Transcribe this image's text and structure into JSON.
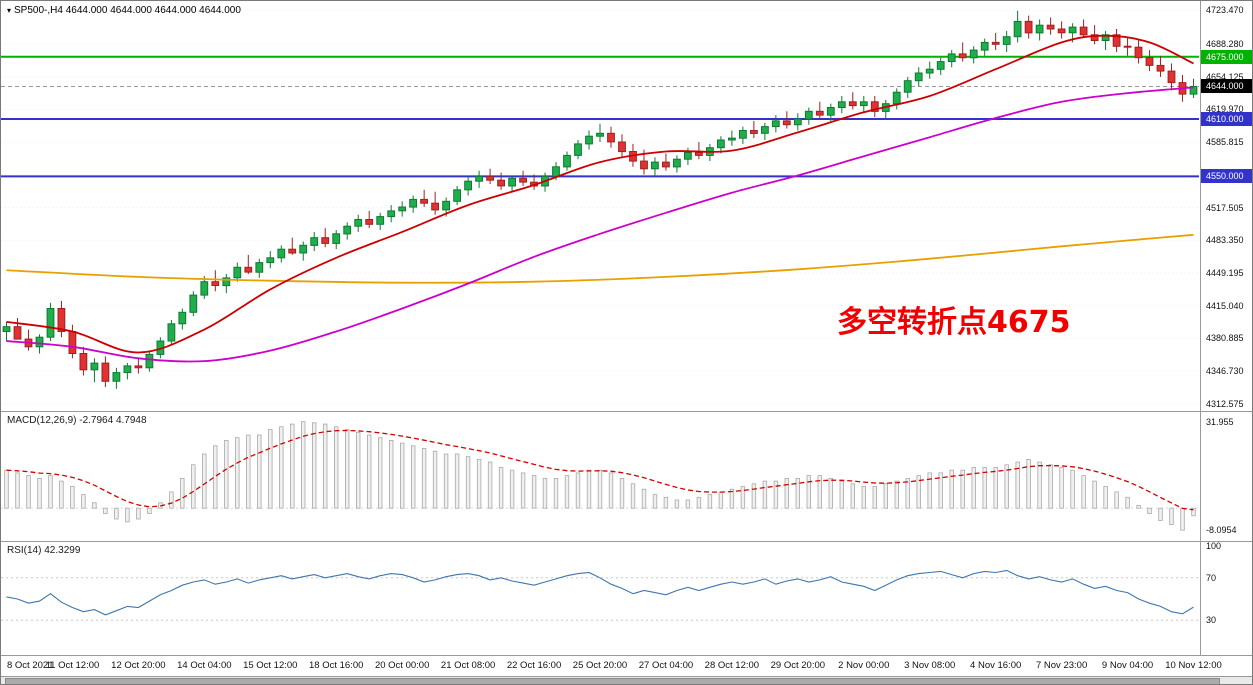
{
  "header": {
    "dropdown_icon": "▾",
    "title": "SP500-,H4 4644.000 4644.000 4644.000 4644.000"
  },
  "annotation": {
    "text": "多空转折点4675",
    "color": "#F20000"
  },
  "colors": {
    "bull_fill": "#1FAE4B",
    "bull_border": "#0E7A31",
    "bear_fill": "#E03232",
    "bear_border": "#A02020",
    "ma_fast": "#CC0000",
    "ma_mid": "#CC00CC",
    "ma_slow": "#E8A000",
    "hline_green": "#00B200",
    "hline_blue": "#3333CC",
    "current_price_line": "#9a9a9a",
    "current_badge": "#000000",
    "macd_bar_fill": "#F0F0F0",
    "macd_bar_border": "#A8A8A8",
    "macd_signal": "#D40000",
    "rsi_line": "#3F76AD",
    "grid": "#ECECEC",
    "level_dotted": "#C8C8C8"
  },
  "chart_data": {
    "type": "candlestick",
    "symbol": "SP500-",
    "timeframe": "H4",
    "x_labels": [
      "8 Oct 2021",
      "11 Oct 12:00",
      "12 Oct 20:00",
      "14 Oct 04:00",
      "15 Oct 12:00",
      "18 Oct 16:00",
      "20 Oct 00:00",
      "21 Oct 08:00",
      "22 Oct 16:00",
      "25 Oct 20:00",
      "27 Oct 04:00",
      "28 Oct 12:00",
      "29 Oct 20:00",
      "2 Nov 00:00",
      "3 Nov 08:00",
      "4 Nov 16:00",
      "7 Nov 23:00",
      "9 Nov 04:00",
      "10 Nov 12:00"
    ],
    "candles_per_label": 6,
    "price_axis": {
      "ylim": [
        4307,
        4727
      ],
      "labels": [
        "4723.470",
        "4688.280",
        "4654.125",
        "4619.970",
        "4585.815",
        "4551.660",
        "4517.505",
        "4483.350",
        "4449.195",
        "4415.040",
        "4380.885",
        "4346.730",
        "4312.575"
      ]
    },
    "overlays": {
      "hlines": [
        {
          "price": 4675.0,
          "label": "4675.000",
          "color": "#00B200"
        },
        {
          "price": 4610.0,
          "label": "4610.000",
          "color": "#3333CC"
        },
        {
          "price": 4550.0,
          "label": "4550.000",
          "color": "#3333CC"
        }
      ],
      "current_price": {
        "price": 4644.0,
        "label": "4644.000"
      },
      "ma_fast_anchors": [
        [
          0,
          4398
        ],
        [
          6,
          4388
        ],
        [
          12,
          4366
        ],
        [
          18,
          4390
        ],
        [
          24,
          4432
        ],
        [
          30,
          4465
        ],
        [
          36,
          4492
        ],
        [
          42,
          4520
        ],
        [
          48,
          4541
        ],
        [
          54,
          4565
        ],
        [
          60,
          4576
        ],
        [
          66,
          4577
        ],
        [
          72,
          4596
        ],
        [
          78,
          4617
        ],
        [
          84,
          4634
        ],
        [
          90,
          4662
        ],
        [
          96,
          4690
        ],
        [
          100,
          4697
        ],
        [
          104,
          4690
        ],
        [
          108,
          4668
        ]
      ],
      "ma_mid_anchors": [
        [
          0,
          4378
        ],
        [
          6,
          4372
        ],
        [
          12,
          4360
        ],
        [
          18,
          4357
        ],
        [
          24,
          4368
        ],
        [
          30,
          4388
        ],
        [
          36,
          4412
        ],
        [
          42,
          4438
        ],
        [
          48,
          4466
        ],
        [
          54,
          4490
        ],
        [
          60,
          4512
        ],
        [
          66,
          4533
        ],
        [
          72,
          4551
        ],
        [
          78,
          4571
        ],
        [
          84,
          4591
        ],
        [
          90,
          4611
        ],
        [
          96,
          4628
        ],
        [
          102,
          4637
        ],
        [
          108,
          4643
        ]
      ],
      "ma_slow_anchors": [
        [
          0,
          4452
        ],
        [
          12,
          4445
        ],
        [
          24,
          4441
        ],
        [
          36,
          4439
        ],
        [
          48,
          4440
        ],
        [
          60,
          4445
        ],
        [
          72,
          4453
        ],
        [
          84,
          4464
        ],
        [
          96,
          4477
        ],
        [
          108,
          4489
        ]
      ]
    },
    "candles": [
      [
        4388,
        4398,
        4378,
        4393
      ],
      [
        4393,
        4402,
        4386,
        4380
      ],
      [
        4380,
        4390,
        4368,
        4372
      ],
      [
        4372,
        4385,
        4365,
        4382
      ],
      [
        4382,
        4418,
        4378,
        4412
      ],
      [
        4412,
        4420,
        4382,
        4388
      ],
      [
        4388,
        4395,
        4360,
        4365
      ],
      [
        4365,
        4372,
        4342,
        4348
      ],
      [
        4348,
        4360,
        4335,
        4355
      ],
      [
        4355,
        4362,
        4330,
        4336
      ],
      [
        4336,
        4350,
        4328,
        4345
      ],
      [
        4345,
        4355,
        4338,
        4352
      ],
      [
        4352,
        4360,
        4344,
        4350
      ],
      [
        4350,
        4368,
        4346,
        4364
      ],
      [
        4364,
        4382,
        4360,
        4378
      ],
      [
        4378,
        4400,
        4374,
        4396
      ],
      [
        4396,
        4412,
        4390,
        4408
      ],
      [
        4408,
        4430,
        4404,
        4426
      ],
      [
        4426,
        4446,
        4422,
        4440
      ],
      [
        4440,
        4452,
        4430,
        4436
      ],
      [
        4436,
        4448,
        4428,
        4444
      ],
      [
        4444,
        4460,
        4440,
        4455
      ],
      [
        4455,
        4468,
        4448,
        4450
      ],
      [
        4450,
        4464,
        4444,
        4460
      ],
      [
        4460,
        4472,
        4454,
        4465
      ],
      [
        4465,
        4478,
        4460,
        4474
      ],
      [
        4474,
        4486,
        4468,
        4470
      ],
      [
        4470,
        4482,
        4462,
        4478
      ],
      [
        4478,
        4492,
        4472,
        4486
      ],
      [
        4486,
        4496,
        4476,
        4480
      ],
      [
        4480,
        4494,
        4474,
        4490
      ],
      [
        4490,
        4502,
        4484,
        4498
      ],
      [
        4498,
        4510,
        4492,
        4505
      ],
      [
        4505,
        4514,
        4496,
        4500
      ],
      [
        4500,
        4512,
        4494,
        4508
      ],
      [
        4508,
        4520,
        4502,
        4514
      ],
      [
        4514,
        4524,
        4508,
        4518
      ],
      [
        4518,
        4530,
        4512,
        4526
      ],
      [
        4526,
        4536,
        4518,
        4522
      ],
      [
        4522,
        4534,
        4510,
        4515
      ],
      [
        4515,
        4528,
        4508,
        4524
      ],
      [
        4524,
        4540,
        4520,
        4536
      ],
      [
        4536,
        4550,
        4530,
        4545
      ],
      [
        4545,
        4556,
        4538,
        4550
      ],
      [
        4550,
        4558,
        4542,
        4546
      ],
      [
        4546,
        4554,
        4536,
        4540
      ],
      [
        4540,
        4550,
        4534,
        4548
      ],
      [
        4548,
        4556,
        4540,
        4544
      ],
      [
        4544,
        4552,
        4536,
        4540
      ],
      [
        4540,
        4554,
        4534,
        4550
      ],
      [
        4550,
        4565,
        4546,
        4560
      ],
      [
        4560,
        4576,
        4556,
        4572
      ],
      [
        4572,
        4588,
        4568,
        4584
      ],
      [
        4584,
        4598,
        4578,
        4592
      ],
      [
        4592,
        4605,
        4586,
        4595
      ],
      [
        4595,
        4602,
        4580,
        4586
      ],
      [
        4586,
        4594,
        4570,
        4576
      ],
      [
        4576,
        4584,
        4560,
        4566
      ],
      [
        4566,
        4578,
        4552,
        4558
      ],
      [
        4558,
        4570,
        4550,
        4565
      ],
      [
        4565,
        4574,
        4556,
        4560
      ],
      [
        4560,
        4572,
        4554,
        4568
      ],
      [
        4568,
        4580,
        4562,
        4575
      ],
      [
        4575,
        4586,
        4568,
        4572
      ],
      [
        4572,
        4584,
        4566,
        4580
      ],
      [
        4580,
        4592,
        4574,
        4588
      ],
      [
        4588,
        4598,
        4582,
        4590
      ],
      [
        4590,
        4602,
        4584,
        4598
      ],
      [
        4598,
        4608,
        4590,
        4595
      ],
      [
        4595,
        4606,
        4588,
        4602
      ],
      [
        4602,
        4614,
        4596,
        4608
      ],
      [
        4608,
        4618,
        4600,
        4604
      ],
      [
        4604,
        4616,
        4598,
        4610
      ],
      [
        4610,
        4622,
        4604,
        4618
      ],
      [
        4618,
        4628,
        4610,
        4614
      ],
      [
        4614,
        4626,
        4608,
        4622
      ],
      [
        4622,
        4634,
        4616,
        4628
      ],
      [
        4628,
        4638,
        4620,
        4624
      ],
      [
        4624,
        4634,
        4616,
        4628
      ],
      [
        4628,
        4634,
        4612,
        4618
      ],
      [
        4618,
        4630,
        4610,
        4626
      ],
      [
        4626,
        4642,
        4620,
        4638
      ],
      [
        4638,
        4654,
        4632,
        4650
      ],
      [
        4650,
        4664,
        4644,
        4658
      ],
      [
        4658,
        4670,
        4652,
        4662
      ],
      [
        4662,
        4674,
        4656,
        4670
      ],
      [
        4670,
        4682,
        4664,
        4678
      ],
      [
        4678,
        4690,
        4670,
        4674
      ],
      [
        4674,
        4686,
        4668,
        4682
      ],
      [
        4682,
        4694,
        4676,
        4690
      ],
      [
        4690,
        4700,
        4682,
        4688
      ],
      [
        4688,
        4702,
        4680,
        4696
      ],
      [
        4696,
        4723,
        4690,
        4712
      ],
      [
        4712,
        4718,
        4694,
        4700
      ],
      [
        4700,
        4714,
        4692,
        4708
      ],
      [
        4708,
        4716,
        4698,
        4704
      ],
      [
        4704,
        4712,
        4694,
        4700
      ],
      [
        4700,
        4710,
        4690,
        4706
      ],
      [
        4706,
        4714,
        4696,
        4698
      ],
      [
        4698,
        4708,
        4688,
        4692
      ],
      [
        4692,
        4702,
        4682,
        4698
      ],
      [
        4698,
        4704,
        4680,
        4686
      ],
      [
        4686,
        4696,
        4676,
        4685
      ],
      [
        4685,
        4692,
        4668,
        4674
      ],
      [
        4674,
        4682,
        4660,
        4666
      ],
      [
        4666,
        4676,
        4654,
        4660
      ],
      [
        4660,
        4668,
        4640,
        4648
      ],
      [
        4648,
        4656,
        4628,
        4636
      ],
      [
        4636,
        4652,
        4632,
        4644
      ]
    ],
    "macd": {
      "label": "MACD(12,26,9) -2.7964 4.7948",
      "ylim": [
        -11,
        34
      ],
      "signal_period": 9,
      "axis_labels": [
        {
          "value": 31.955,
          "text": "31.955"
        },
        {
          "value": -8.0954,
          "text": "-8.0954"
        }
      ],
      "values": [
        14,
        13,
        12,
        11,
        12,
        10,
        8,
        5,
        2,
        -2,
        -4,
        -5,
        -4,
        -2,
        2,
        6,
        11,
        16,
        20,
        23,
        25,
        26,
        27,
        27,
        29,
        30,
        31,
        31.9,
        31.5,
        31,
        30,
        29,
        28,
        27,
        26,
        25,
        24,
        23,
        22,
        21,
        20,
        20,
        19,
        18,
        17,
        15,
        14,
        13,
        12,
        11,
        11,
        12,
        13,
        14,
        14,
        13,
        11,
        9,
        7,
        5,
        4,
        3,
        3,
        4,
        5,
        6,
        7,
        8,
        9,
        10,
        10,
        11,
        11,
        12,
        12,
        11,
        10,
        9,
        8,
        8,
        9,
        10,
        11,
        12,
        13,
        13,
        14,
        14,
        15,
        15,
        15,
        16,
        17,
        18,
        17,
        16,
        15,
        14,
        12,
        10,
        8,
        6,
        4,
        1,
        -2,
        -4.5,
        -6,
        -8.1,
        -2.8
      ]
    },
    "rsi": {
      "label": "RSI(14) 42.3299",
      "ylim": [
        0,
        100
      ],
      "levels": [
        70,
        30
      ],
      "axis_labels": [
        {
          "value": 100,
          "text": "100"
        },
        {
          "value": 70,
          "text": "70"
        },
        {
          "value": 30,
          "text": "30"
        }
      ],
      "values": [
        52,
        50,
        46,
        48,
        55,
        47,
        42,
        38,
        40,
        35,
        39,
        43,
        42,
        48,
        54,
        58,
        63,
        66,
        68,
        64,
        66,
        69,
        65,
        68,
        70,
        72,
        69,
        71,
        73,
        70,
        72,
        74,
        71,
        69,
        72,
        74,
        73,
        70,
        66,
        68,
        71,
        73,
        74,
        72,
        68,
        70,
        67,
        65,
        63,
        66,
        69,
        72,
        74,
        75,
        70,
        64,
        60,
        55,
        58,
        56,
        54,
        58,
        61,
        58,
        61,
        64,
        66,
        64,
        66,
        69,
        64,
        67,
        69,
        66,
        68,
        71,
        66,
        64,
        62,
        58,
        63,
        68,
        72,
        74,
        75,
        76,
        73,
        70,
        74,
        76,
        75,
        77,
        72,
        69,
        71,
        68,
        66,
        69,
        64,
        60,
        62,
        58,
        56,
        50,
        46,
        43,
        38,
        36,
        42.33
      ]
    }
  }
}
